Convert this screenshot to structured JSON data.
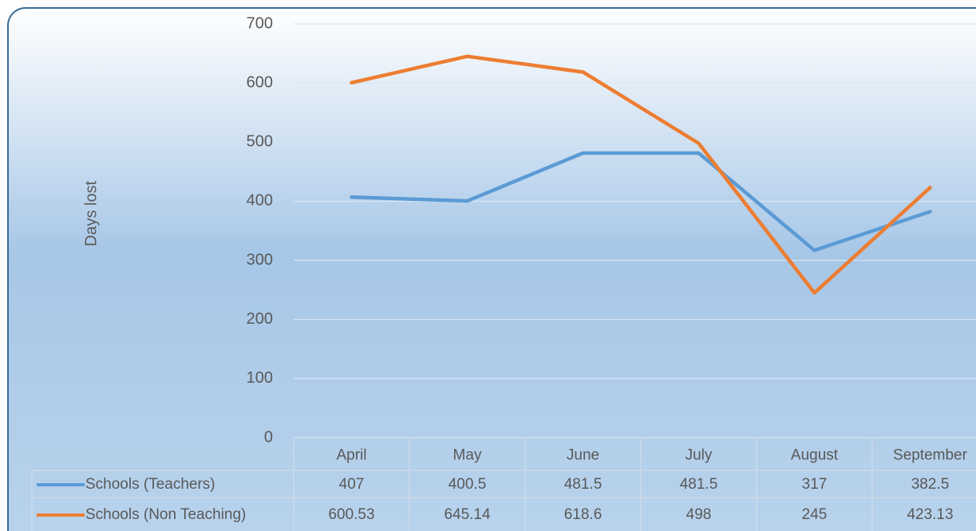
{
  "chart_data": {
    "type": "line",
    "y_label": "Days lost",
    "categories": [
      "April",
      "May",
      "June",
      "July",
      "August",
      "September"
    ],
    "series": [
      {
        "name": "Schools (Teachers)",
        "color": "#5b9bd5",
        "values": [
          407,
          400.5,
          481.5,
          481.5,
          317,
          382.5
        ]
      },
      {
        "name": "Schools (Non Teaching)",
        "color": "#ed7d31",
        "values": [
          600.53,
          645.14,
          618.6,
          498,
          245,
          423.13
        ]
      }
    ],
    "ylim": [
      0,
      700
    ],
    "yticks": [
      0,
      100,
      200,
      300,
      400,
      500,
      600,
      700
    ],
    "grid": true
  }
}
